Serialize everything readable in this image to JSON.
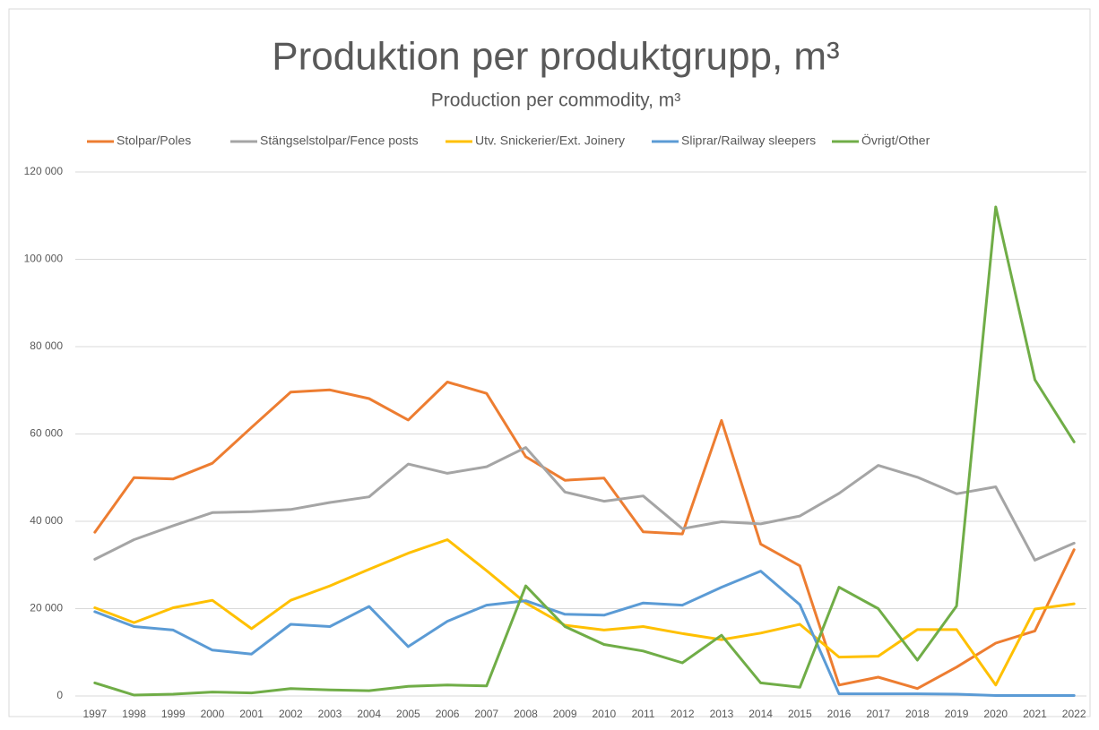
{
  "chart_data": {
    "type": "line",
    "title": "Produktion per produktgrupp, m³",
    "subtitle": "Production per commodity, m³",
    "categories": [
      "1997",
      "1998",
      "1999",
      "2000",
      "2001",
      "2002",
      "2003",
      "2004",
      "2005",
      "2006",
      "2007",
      "2008",
      "2009",
      "2010",
      "2011",
      "2012",
      "2013",
      "2014",
      "2015",
      "2016",
      "2017",
      "2018",
      "2019",
      "2020",
      "2021",
      "2022"
    ],
    "series": [
      {
        "name": "Stolpar/Poles",
        "color": "#ed7d31",
        "values": [
          37500,
          50000,
          49700,
          53300,
          61500,
          69600,
          70100,
          68100,
          63200,
          71900,
          69300,
          54800,
          49400,
          49900,
          37600,
          37100,
          63100,
          34800,
          29800,
          2500,
          4300,
          1700,
          6600,
          12100,
          14900,
          33500
        ]
      },
      {
        "name": "Stängselstolpar/Fence posts",
        "color": "#a5a5a5",
        "values": [
          31300,
          35800,
          39000,
          42000,
          42200,
          42700,
          44300,
          45600,
          53100,
          51000,
          52500,
          56900,
          46700,
          44600,
          45800,
          38300,
          39900,
          39400,
          41200,
          46400,
          52800,
          50100,
          46300,
          47900,
          31100,
          35000
        ]
      },
      {
        "name": "Utv. Snickerier/Ext. Joinery",
        "color": "#ffc000",
        "values": [
          20200,
          16800,
          20200,
          21900,
          15400,
          21900,
          25200,
          29000,
          32700,
          35800,
          28700,
          21300,
          16200,
          15100,
          15900,
          14300,
          12900,
          14400,
          16400,
          8900,
          9100,
          15200,
          15200,
          2500,
          19900,
          21100
        ]
      },
      {
        "name": "Sliprar/Railway sleepers",
        "color": "#5b9bd5",
        "values": [
          19300,
          15900,
          15100,
          10500,
          9600,
          16400,
          15900,
          20500,
          11300,
          17100,
          20800,
          21800,
          18700,
          18500,
          21300,
          20800,
          24900,
          28600,
          20900,
          500,
          500,
          500,
          400,
          100,
          100,
          100
        ]
      },
      {
        "name": "Övrigt/Other",
        "color": "#70ad47",
        "values": [
          3000,
          200,
          400,
          900,
          700,
          1700,
          1400,
          1200,
          2200,
          2500,
          2300,
          25200,
          15900,
          11800,
          10300,
          7600,
          13900,
          3000,
          2000,
          24900,
          20000,
          8200,
          20600,
          112000,
          72400,
          58200
        ]
      }
    ],
    "ylim": [
      0,
      120000
    ],
    "yticks": [
      0,
      {
        "value": 20000,
        "label": "20 000"
      },
      {
        "value": 40000,
        "label": "40 000"
      },
      {
        "value": 60000,
        "label": "60 000"
      },
      {
        "value": 80000,
        "label": "80 000"
      },
      {
        "value": 100000,
        "label": "100 000"
      },
      {
        "value": 120000,
        "label": "120 000"
      }
    ],
    "grid": true,
    "legend": "top"
  }
}
